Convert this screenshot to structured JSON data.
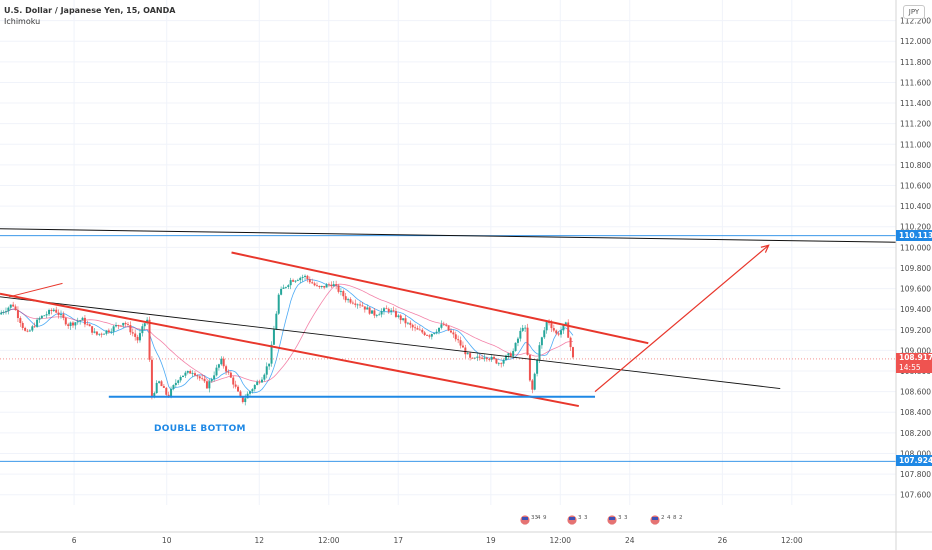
{
  "header": {
    "symbol_line": "U.S. Dollar / Japanese Yen, 15, OANDA",
    "indicator": "Ichimoku",
    "currency_button": "JPY"
  },
  "annotation_text": "DOUBLE BOTTOM",
  "price_labels": {
    "resistance": "110.113",
    "current": "108.917",
    "countdown": "14:55",
    "support": "107.924"
  },
  "colors": {
    "candle_up": "#26a69a",
    "candle_down": "#ef5350",
    "channel": "#e8372c",
    "level_line": "#1e88e5",
    "trend_line": "#111111",
    "current_price": "#ef5350",
    "tenkan": "#2196f3",
    "kijun": "#e91e63"
  },
  "events": {
    "labels": [
      "33",
      "4",
      "9",
      "3",
      "3",
      "3",
      "3",
      "2",
      "4",
      "8",
      "2"
    ]
  },
  "chart_data": {
    "type": "candlestick",
    "title": "U.S. Dollar / Japanese Yen, 15, OANDA",
    "indicator": "Ichimoku",
    "y_ticks": [
      107.6,
      107.8,
      108.0,
      108.2,
      108.4,
      108.6,
      108.8,
      109.0,
      109.2,
      109.4,
      109.6,
      109.8,
      110.0,
      110.2,
      110.4,
      110.6,
      110.8,
      111.0,
      111.2,
      111.4,
      111.6,
      111.8,
      112.0,
      112.2
    ],
    "y_tick_labels": [
      "107.600",
      "107.800",
      "108.000",
      "108.200",
      "108.400",
      "108.600",
      "108.800",
      "109.000",
      "109.200",
      "109.400",
      "109.600",
      "109.800",
      "110.000",
      "110.200",
      "110.400",
      "110.600",
      "110.800",
      "111.000",
      "111.200",
      "111.400",
      "111.600",
      "111.800",
      "112.000",
      "112.200"
    ],
    "ylim": [
      107.5,
      112.4
    ],
    "x_ticks": [
      {
        "t": 6,
        "label": "6"
      },
      {
        "t": 10,
        "label": "10"
      },
      {
        "t": 14,
        "label": "12"
      },
      {
        "t": 17,
        "label": "12:00"
      },
      {
        "t": 20,
        "label": "17"
      },
      {
        "t": 24,
        "label": "19"
      },
      {
        "t": 27,
        "label": "12:00"
      },
      {
        "t": 30,
        "label": "24"
      },
      {
        "t": 34,
        "label": "26"
      },
      {
        "t": 37,
        "label": "12:00"
      }
    ],
    "xlim": [
      2.8,
      41.5
    ],
    "price_path": [
      [
        2.8,
        109.35
      ],
      [
        3.4,
        109.45
      ],
      [
        4.0,
        109.15
      ],
      [
        4.6,
        109.32
      ],
      [
        5.2,
        109.4
      ],
      [
        5.8,
        109.25
      ],
      [
        6.4,
        109.3
      ],
      [
        7.0,
        109.15
      ],
      [
        7.6,
        109.2
      ],
      [
        8.2,
        109.28
      ],
      [
        8.8,
        109.1
      ],
      [
        9.2,
        109.32
      ],
      [
        9.4,
        108.55
      ],
      [
        9.7,
        108.7
      ],
      [
        10.1,
        108.55
      ],
      [
        10.6,
        108.75
      ],
      [
        11.2,
        108.8
      ],
      [
        11.8,
        108.65
      ],
      [
        12.4,
        108.9
      ],
      [
        12.9,
        108.7
      ],
      [
        13.3,
        108.5
      ],
      [
        13.7,
        108.62
      ],
      [
        14.2,
        108.75
      ],
      [
        14.5,
        108.9
      ],
      [
        14.9,
        109.55
      ],
      [
        15.4,
        109.68
      ],
      [
        16.0,
        109.72
      ],
      [
        16.6,
        109.6
      ],
      [
        17.2,
        109.65
      ],
      [
        17.8,
        109.5
      ],
      [
        18.4,
        109.45
      ],
      [
        19.0,
        109.35
      ],
      [
        19.6,
        109.4
      ],
      [
        20.2,
        109.3
      ],
      [
        20.8,
        109.2
      ],
      [
        21.4,
        109.15
      ],
      [
        22.0,
        109.25
      ],
      [
        22.6,
        109.1
      ],
      [
        23.2,
        108.9
      ],
      [
        23.8,
        108.95
      ],
      [
        24.4,
        108.88
      ],
      [
        25.0,
        108.98
      ],
      [
        25.5,
        109.28
      ],
      [
        25.8,
        108.55
      ],
      [
        26.1,
        109.0
      ],
      [
        26.5,
        109.3
      ],
      [
        26.9,
        109.15
      ],
      [
        27.3,
        109.25
      ],
      [
        27.6,
        108.92
      ]
    ],
    "annotations": {
      "resistance_level": 110.113,
      "current_price": 108.917,
      "support_level": 107.924,
      "double_bottom_level": 108.55,
      "double_bottom_x": [
        7.5,
        28.5
      ],
      "long_trend_line": [
        [
          2.8,
          110.18
        ],
        [
          41.5,
          110.05
        ]
      ],
      "mid_trend_line": [
        [
          2.8,
          109.52
        ],
        [
          36.5,
          108.63
        ]
      ],
      "channel_upper": [
        [
          12.8,
          109.95
        ],
        [
          30.8,
          109.07
        ]
      ],
      "channel_lower": [
        [
          2.8,
          109.55
        ],
        [
          27.8,
          108.46
        ]
      ],
      "small_red_line": [
        [
          3.2,
          109.52
        ],
        [
          5.5,
          109.65
        ]
      ],
      "projection_arrow": [
        [
          28.5,
          108.6
        ],
        [
          36.0,
          110.02
        ]
      ]
    }
  }
}
